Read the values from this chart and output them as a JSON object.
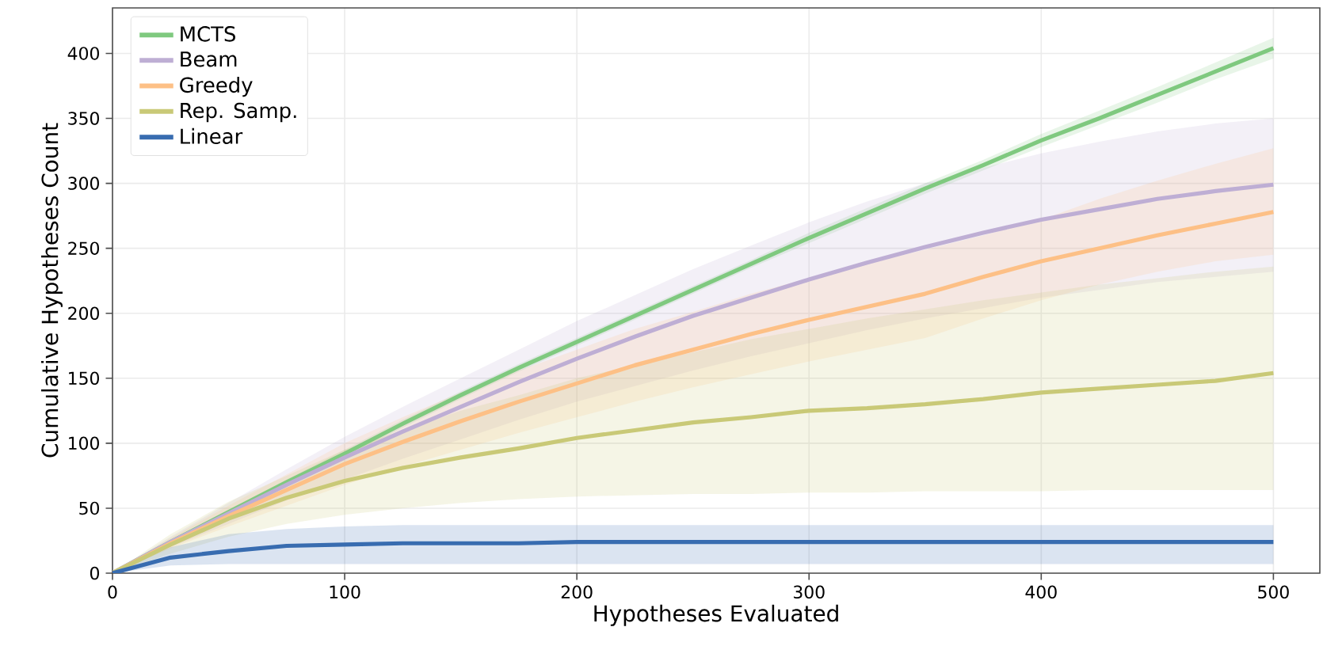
{
  "chart_data": {
    "type": "line",
    "xlabel": "Hypotheses Evaluated",
    "ylabel": "Cumulative Hypotheses Count",
    "x": [
      0,
      25,
      50,
      75,
      100,
      125,
      150,
      175,
      200,
      225,
      250,
      275,
      300,
      325,
      350,
      375,
      400,
      425,
      450,
      475,
      500
    ],
    "series": [
      {
        "name": "MCTS",
        "color": "#7fc97f",
        "values": [
          0,
          24,
          47,
          70,
          92,
          115,
          137,
          158,
          178,
          198,
          218,
          238,
          258,
          277,
          296,
          314,
          333,
          350,
          368,
          386,
          404
        ],
        "lower": [
          0,
          23,
          45,
          68,
          89,
          112,
          134,
          155,
          175,
          195,
          215,
          235,
          254,
          273,
          292,
          310,
          328,
          345,
          362,
          380,
          396
        ],
        "upper": [
          0,
          25,
          49,
          72,
          95,
          118,
          140,
          161,
          181,
          201,
          221,
          241,
          262,
          281,
          300,
          318,
          338,
          356,
          374,
          393,
          412
        ]
      },
      {
        "name": "Beam",
        "color": "#beaed4",
        "values": [
          0,
          24,
          46,
          68,
          89,
          109,
          128,
          147,
          165,
          182,
          198,
          212,
          226,
          239,
          251,
          262,
          272,
          280,
          288,
          294,
          299
        ],
        "lower": [
          0,
          20,
          38,
          56,
          72,
          88,
          103,
          118,
          132,
          144,
          156,
          167,
          177,
          187,
          196,
          204,
          212,
          218,
          224,
          228,
          232
        ],
        "upper": [
          0,
          28,
          54,
          80,
          105,
          128,
          150,
          172,
          194,
          214,
          234,
          252,
          270,
          286,
          300,
          312,
          323,
          332,
          340,
          346,
          350
        ]
      },
      {
        "name": "Greedy",
        "color": "#fdc086",
        "values": [
          0,
          23,
          44,
          64,
          84,
          101,
          117,
          132,
          146,
          160,
          172,
          184,
          195,
          205,
          215,
          228,
          240,
          250,
          260,
          269,
          278
        ],
        "lower": [
          0,
          19,
          36,
          52,
          68,
          82,
          95,
          108,
          120,
          132,
          143,
          153,
          163,
          172,
          181,
          196,
          210,
          222,
          232,
          240,
          245
        ],
        "upper": [
          0,
          27,
          52,
          76,
          100,
          120,
          139,
          156,
          172,
          188,
          201,
          215,
          227,
          238,
          249,
          260,
          272,
          288,
          302,
          315,
          327
        ]
      },
      {
        "name": "Rep. Samp.",
        "color": "#c9c977",
        "values": [
          0,
          22,
          42,
          58,
          71,
          81,
          89,
          96,
          104,
          110,
          116,
          120,
          125,
          127,
          130,
          134,
          139,
          142,
          145,
          148,
          154
        ],
        "lower": [
          0,
          15,
          28,
          38,
          45,
          50,
          54,
          57,
          59,
          60,
          61,
          61,
          62,
          62,
          63,
          63,
          63,
          64,
          64,
          64,
          64
        ],
        "upper": [
          0,
          30,
          55,
          75,
          95,
          110,
          125,
          137,
          150,
          160,
          170,
          180,
          188,
          196,
          203,
          210,
          216,
          222,
          227,
          232,
          236
        ]
      },
      {
        "name": "Linear",
        "color": "#386cb0",
        "values": [
          0,
          12,
          17,
          21,
          22,
          23,
          23,
          23,
          24,
          24,
          24,
          24,
          24,
          24,
          24,
          24,
          24,
          24,
          24,
          24,
          24
        ],
        "lower": [
          0,
          6,
          7,
          7,
          7,
          7,
          7,
          7,
          7,
          7,
          7,
          7,
          7,
          7,
          7,
          7,
          7,
          7,
          7,
          7,
          7
        ],
        "upper": [
          0,
          20,
          30,
          34,
          36,
          37,
          37,
          37,
          37,
          37,
          37,
          37,
          37,
          37,
          37,
          37,
          37,
          37,
          37,
          37,
          37
        ]
      }
    ],
    "xlim": [
      0,
      520
    ],
    "ylim": [
      0,
      435
    ],
    "xticks": [
      0,
      100,
      200,
      300,
      400,
      500
    ],
    "yticks": [
      0,
      50,
      100,
      150,
      200,
      250,
      300,
      350,
      400
    ],
    "grid": true,
    "legend": "top left",
    "marker": "none",
    "line_style": "solid"
  }
}
